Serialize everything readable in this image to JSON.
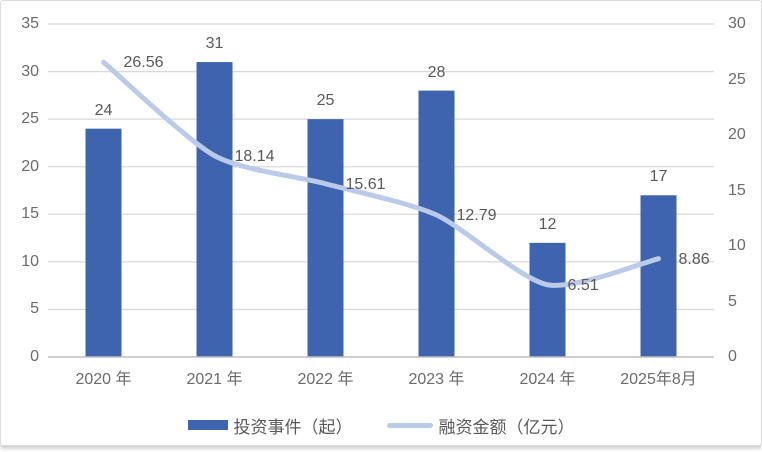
{
  "chart_data": {
    "type": "combo-bar-line",
    "title": "",
    "categories": [
      "2020 年",
      "2021 年",
      "2022 年",
      "2023 年",
      "2024 年",
      "2025年8月"
    ],
    "series": [
      {
        "name": "投资事件（起）",
        "type": "bar",
        "axis": "left",
        "color": "#3E64AF",
        "values": [
          24,
          31,
          25,
          28,
          12,
          17
        ]
      },
      {
        "name": "融资金额（亿元）",
        "type": "line",
        "axis": "right",
        "color": "#B9CBE9",
        "values": [
          26.56,
          18.14,
          15.61,
          12.79,
          6.51,
          8.86
        ]
      }
    ],
    "left_axis": {
      "min": 0,
      "max": 35,
      "step": 5,
      "ticks": [
        35,
        30,
        25,
        20,
        15,
        10,
        5,
        0
      ]
    },
    "right_axis": {
      "min": 0,
      "max": 30,
      "step": 5,
      "ticks": [
        30,
        25,
        20,
        15,
        10,
        5,
        0
      ]
    },
    "grid": true,
    "legend_position": "bottom",
    "colors": {
      "bar": "#3E64AF",
      "line": "#B9CBE9",
      "gridline": "#D9D9D9",
      "axis_line": "#BFBFBF",
      "tick_text": "#6B6B6B",
      "data_label_text": "#595959"
    }
  }
}
